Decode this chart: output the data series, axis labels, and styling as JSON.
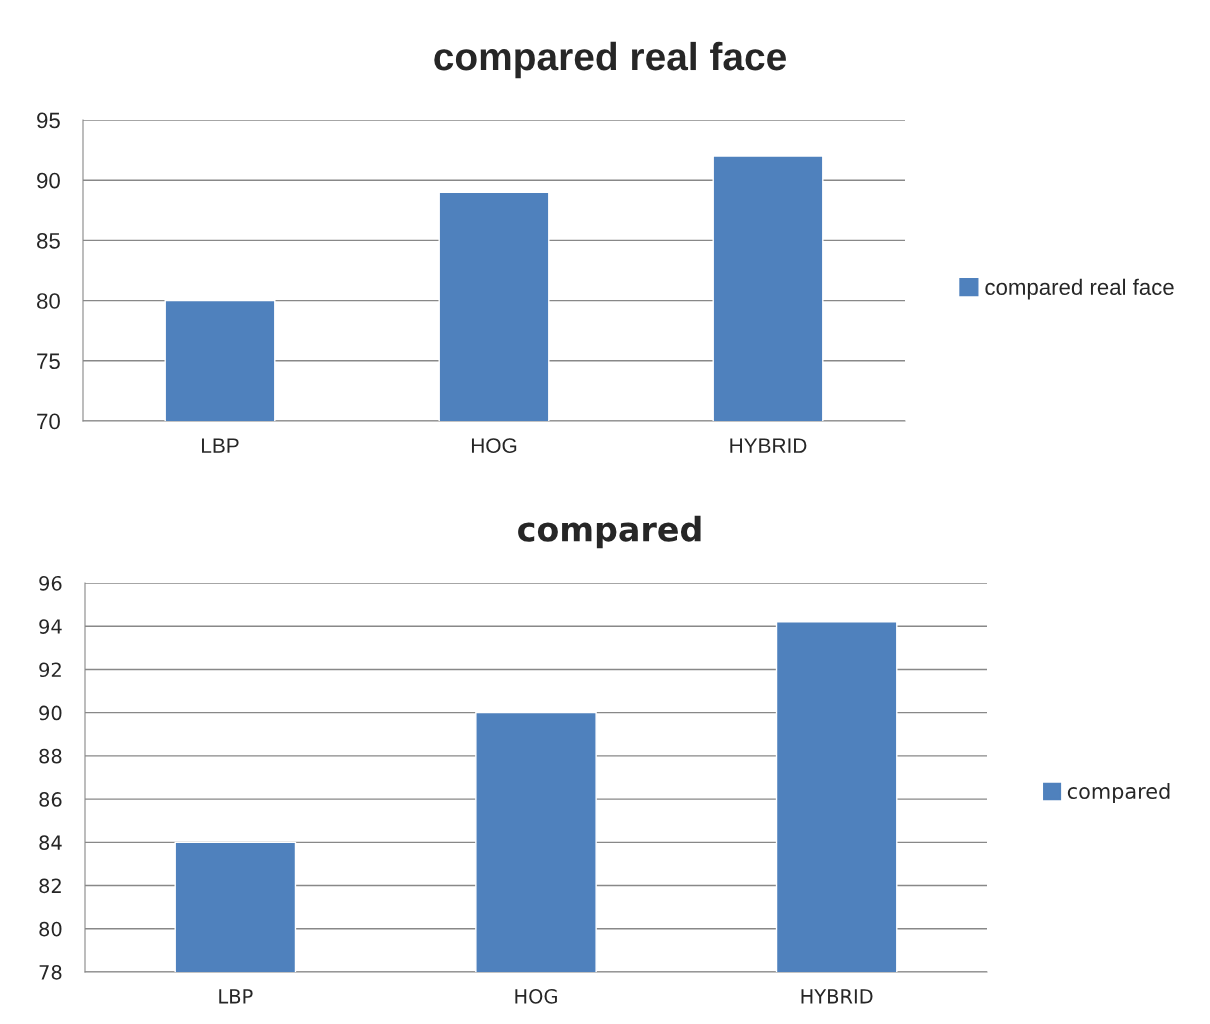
{
  "chart_data": [
    {
      "type": "bar",
      "title": "compared real face",
      "categories": [
        "LBP",
        "HOG",
        "HYBRID"
      ],
      "series": [
        {
          "name": "compared real face",
          "color": "#4f81bd",
          "values": [
            80,
            89,
            92
          ]
        }
      ],
      "ylim": [
        70,
        95
      ],
      "yticks": [
        70,
        75,
        80,
        85,
        90,
        95
      ],
      "grid": "y",
      "legend": "right"
    },
    {
      "type": "bar",
      "title": "compared",
      "categories": [
        "LBP",
        "HOG",
        "HYBRID"
      ],
      "series": [
        {
          "name": "compared",
          "color": "#4f81bd",
          "values": [
            84,
            90,
            94.2
          ]
        }
      ],
      "ylim": [
        78,
        96
      ],
      "yticks": [
        78,
        80,
        82,
        84,
        86,
        88,
        90,
        92,
        94,
        96
      ],
      "grid": "y",
      "legend": "right"
    }
  ]
}
